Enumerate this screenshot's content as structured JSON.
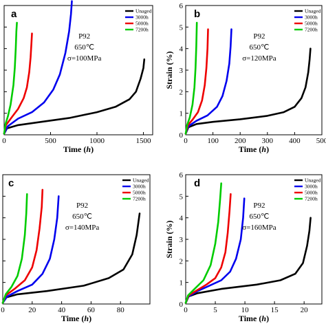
{
  "chart_data": [
    {
      "type": "line",
      "panel": "a",
      "xlabel": "Time",
      "xlabel_unit": "h",
      "ylabel": "",
      "xlim": [
        0,
        1600
      ],
      "ylim": [
        0,
        6
      ],
      "xticks": [
        0,
        500,
        1000,
        1500
      ],
      "yticks": [
        1,
        2,
        3,
        4,
        5,
        6
      ],
      "annotation": [
        "P92",
        "650℃",
        "σ=100MPa"
      ],
      "legend": [
        "Unaged",
        "3000h",
        "5000h",
        "7200h"
      ],
      "series": [
        {
          "name": "Unaged",
          "color": "#000000",
          "points": [
            [
              0,
              0.05
            ],
            [
              30,
              0.3
            ],
            [
              150,
              0.45
            ],
            [
              400,
              0.6
            ],
            [
              700,
              0.78
            ],
            [
              1000,
              1.05
            ],
            [
              1200,
              1.3
            ],
            [
              1350,
              1.65
            ],
            [
              1420,
              2.0
            ],
            [
              1470,
              2.6
            ],
            [
              1500,
              3.1
            ],
            [
              1510,
              3.5
            ]
          ]
        },
        {
          "name": "3000h",
          "color": "#0000ee",
          "points": [
            [
              0,
              0.05
            ],
            [
              40,
              0.4
            ],
            [
              150,
              0.75
            ],
            [
              300,
              1.05
            ],
            [
              430,
              1.5
            ],
            [
              530,
              2.1
            ],
            [
              600,
              2.8
            ],
            [
              660,
              3.8
            ],
            [
              700,
              4.8
            ],
            [
              720,
              5.6
            ],
            [
              730,
              6.2
            ]
          ]
        },
        {
          "name": "5000h",
          "color": "#ee0000",
          "points": [
            [
              0,
              0.05
            ],
            [
              20,
              0.45
            ],
            [
              80,
              0.8
            ],
            [
              150,
              1.2
            ],
            [
              210,
              1.7
            ],
            [
              245,
              2.2
            ],
            [
              270,
              2.9
            ],
            [
              285,
              3.6
            ],
            [
              295,
              4.3
            ],
            [
              300,
              4.7
            ]
          ]
        },
        {
          "name": "7200h",
          "color": "#00cc00",
          "points": [
            [
              0,
              0.05
            ],
            [
              15,
              0.5
            ],
            [
              40,
              0.85
            ],
            [
              70,
              1.4
            ],
            [
              100,
              2.3
            ],
            [
              115,
              3.1
            ],
            [
              125,
              4.0
            ],
            [
              132,
              4.8
            ],
            [
              138,
              5.2
            ]
          ]
        }
      ]
    },
    {
      "type": "line",
      "panel": "b",
      "xlabel": "Time",
      "xlabel_unit": "h",
      "ylabel": "Strain (%)",
      "xlim": [
        0,
        500
      ],
      "ylim": [
        0,
        6
      ],
      "xticks": [
        0,
        100,
        200,
        300,
        400,
        500
      ],
      "yticks": [
        0,
        1,
        2,
        3,
        4,
        5,
        6
      ],
      "annotation": [
        "P92",
        "650℃",
        "σ=120MPa"
      ],
      "legend": [
        "Unaged",
        "3000h",
        "5000h",
        "7200h"
      ],
      "series": [
        {
          "name": "Unaged",
          "color": "#000000",
          "points": [
            [
              0,
              0.05
            ],
            [
              10,
              0.35
            ],
            [
              40,
              0.5
            ],
            [
              100,
              0.6
            ],
            [
              200,
              0.72
            ],
            [
              300,
              0.88
            ],
            [
              360,
              1.05
            ],
            [
              400,
              1.3
            ],
            [
              425,
              1.7
            ],
            [
              440,
              2.2
            ],
            [
              450,
              2.9
            ],
            [
              455,
              3.5
            ],
            [
              458,
              4.0
            ]
          ]
        },
        {
          "name": "3000h",
          "color": "#0000ee",
          "points": [
            [
              0,
              0.05
            ],
            [
              10,
              0.4
            ],
            [
              40,
              0.65
            ],
            [
              80,
              0.9
            ],
            [
              115,
              1.3
            ],
            [
              135,
              1.8
            ],
            [
              150,
              2.5
            ],
            [
              160,
              3.3
            ],
            [
              165,
              4.1
            ],
            [
              168,
              4.9
            ]
          ]
        },
        {
          "name": "5000h",
          "color": "#ee0000",
          "points": [
            [
              0,
              0.05
            ],
            [
              8,
              0.45
            ],
            [
              25,
              0.7
            ],
            [
              45,
              1.05
            ],
            [
              60,
              1.6
            ],
            [
              70,
              2.3
            ],
            [
              76,
              3.1
            ],
            [
              80,
              4.0
            ],
            [
              82,
              4.9
            ]
          ]
        },
        {
          "name": "7200h",
          "color": "#00cc00",
          "points": [
            [
              0,
              0.05
            ],
            [
              5,
              0.45
            ],
            [
              15,
              0.8
            ],
            [
              25,
              1.4
            ],
            [
              32,
              2.2
            ],
            [
              36,
              3.1
            ],
            [
              39,
              4.1
            ],
            [
              41,
              5.2
            ]
          ]
        }
      ]
    },
    {
      "type": "line",
      "panel": "c",
      "xlabel": "Time",
      "xlabel_unit": "h",
      "ylabel": "",
      "xlim": [
        0,
        100
      ],
      "ylim": [
        0,
        6
      ],
      "xticks": [
        0,
        20,
        40,
        60,
        80
      ],
      "yticks": [
        1,
        2,
        3,
        4,
        5,
        6
      ],
      "annotation": [
        "P92",
        "650℃",
        "σ=140MPa"
      ],
      "legend": [
        "Unaged",
        "3000h",
        "5000h",
        "7200h"
      ],
      "series": [
        {
          "name": "Unaged",
          "color": "#000000",
          "points": [
            [
              0,
              0.05
            ],
            [
              2,
              0.3
            ],
            [
              10,
              0.45
            ],
            [
              30,
              0.6
            ],
            [
              55,
              0.85
            ],
            [
              72,
              1.2
            ],
            [
              82,
              1.6
            ],
            [
              88,
              2.3
            ],
            [
              91,
              3.2
            ],
            [
              93,
              4.2
            ]
          ]
        },
        {
          "name": "3000h",
          "color": "#0000ee",
          "points": [
            [
              0,
              0.05
            ],
            [
              3,
              0.35
            ],
            [
              10,
              0.6
            ],
            [
              20,
              0.9
            ],
            [
              27,
              1.4
            ],
            [
              32,
              2.1
            ],
            [
              35,
              3.0
            ],
            [
              37,
              4.0
            ],
            [
              38,
              5.0
            ]
          ]
        },
        {
          "name": "5000h",
          "color": "#ee0000",
          "points": [
            [
              0,
              0.05
            ],
            [
              2,
              0.4
            ],
            [
              8,
              0.7
            ],
            [
              15,
              1.1
            ],
            [
              20,
              1.7
            ],
            [
              23,
              2.5
            ],
            [
              25,
              3.5
            ],
            [
              26.5,
              4.5
            ],
            [
              27,
              5.3
            ]
          ]
        },
        {
          "name": "7200h",
          "color": "#00cc00",
          "points": [
            [
              0,
              0.05
            ],
            [
              2,
              0.45
            ],
            [
              6,
              0.8
            ],
            [
              10,
              1.3
            ],
            [
              13,
              2.1
            ],
            [
              15,
              3.2
            ],
            [
              16,
              4.2
            ],
            [
              16.5,
              5.1
            ]
          ]
        }
      ]
    },
    {
      "type": "line",
      "panel": "d",
      "xlabel": "Time",
      "xlabel_unit": "h",
      "ylabel": "Strain (%)",
      "xlim": [
        0,
        23
      ],
      "ylim": [
        0,
        6
      ],
      "xticks": [
        0,
        5,
        10,
        15,
        20
      ],
      "yticks": [
        0,
        1,
        2,
        3,
        4,
        5,
        6
      ],
      "annotation": [
        "P92",
        "650℃",
        "σ=160MPa"
      ],
      "legend": [
        "Unaged",
        "3000h",
        "5000h",
        "7200h"
      ],
      "series": [
        {
          "name": "Unaged",
          "color": "#000000",
          "points": [
            [
              0,
              0.05
            ],
            [
              0.5,
              0.35
            ],
            [
              2,
              0.5
            ],
            [
              6,
              0.7
            ],
            [
              12,
              0.9
            ],
            [
              16,
              1.1
            ],
            [
              18.5,
              1.4
            ],
            [
              19.8,
              1.9
            ],
            [
              20.5,
              2.7
            ],
            [
              20.9,
              3.4
            ],
            [
              21.1,
              4.0
            ]
          ]
        },
        {
          "name": "3000h",
          "color": "#0000ee",
          "points": [
            [
              0,
              0.05
            ],
            [
              0.5,
              0.35
            ],
            [
              2,
              0.6
            ],
            [
              4,
              0.85
            ],
            [
              6,
              1.1
            ],
            [
              7.5,
              1.5
            ],
            [
              8.5,
              2.1
            ],
            [
              9.3,
              3.0
            ],
            [
              9.7,
              4.0
            ],
            [
              9.9,
              4.9
            ]
          ]
        },
        {
          "name": "5000h",
          "color": "#ee0000",
          "points": [
            [
              0,
              0.05
            ],
            [
              0.5,
              0.4
            ],
            [
              2,
              0.65
            ],
            [
              3.5,
              0.9
            ],
            [
              5,
              1.2
            ],
            [
              6,
              1.7
            ],
            [
              6.7,
              2.4
            ],
            [
              7.1,
              3.3
            ],
            [
              7.4,
              4.3
            ],
            [
              7.6,
              5.1
            ]
          ]
        },
        {
          "name": "7200h",
          "color": "#00cc00",
          "points": [
            [
              0,
              0.05
            ],
            [
              0.4,
              0.4
            ],
            [
              1.5,
              0.7
            ],
            [
              3,
              1.1
            ],
            [
              4.2,
              1.8
            ],
            [
              5,
              2.8
            ],
            [
              5.5,
              3.8
            ],
            [
              5.8,
              4.8
            ],
            [
              6,
              5.6
            ]
          ]
        }
      ]
    }
  ]
}
